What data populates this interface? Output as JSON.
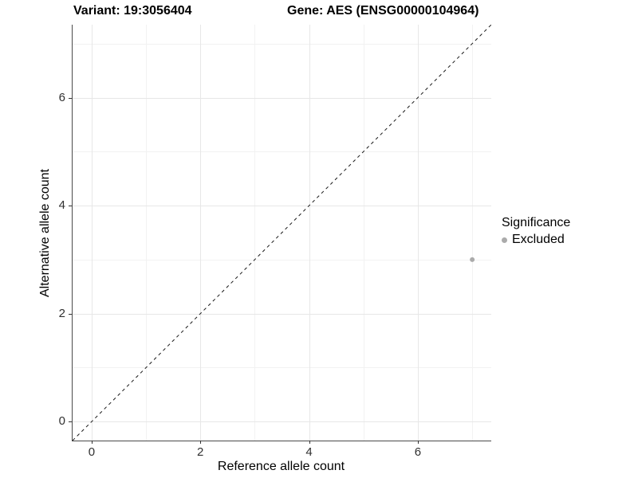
{
  "header": {
    "variant_title": "Variant: 19:3056404",
    "gene_title": "Gene: AES (ENSG00000104964)"
  },
  "chart_data": {
    "type": "scatter",
    "xlabel": "Reference allele count",
    "ylabel": "Alternative allele count",
    "xlim": [
      -0.35,
      7.35
    ],
    "ylim": [
      -0.35,
      7.35
    ],
    "x_major_ticks": [
      0,
      2,
      4,
      6
    ],
    "y_major_ticks": [
      0,
      2,
      4,
      6
    ],
    "x_minor_ticks": [
      1,
      3,
      5,
      7
    ],
    "y_minor_ticks": [
      1,
      3,
      5,
      7
    ],
    "grid": true,
    "points": [
      {
        "x": 7,
        "y": 3,
        "series": "Excluded"
      }
    ],
    "reference_line": {
      "type": "identity",
      "style": "dashed"
    },
    "legend": {
      "position": "right",
      "title": "Significance",
      "items": [
        {
          "label": "Excluded",
          "color": "#ababab"
        }
      ]
    }
  },
  "colors": {
    "background": "#ffffff",
    "grid_major": "#e7e7e7",
    "grid_minor": "#f2f2f2",
    "axis_line": "#4a4a4a",
    "tick_color": "#333333",
    "tick_label": "#303030",
    "title_text": "#000000",
    "point": "#ababab",
    "dashed_line": "#1a1a1a"
  }
}
